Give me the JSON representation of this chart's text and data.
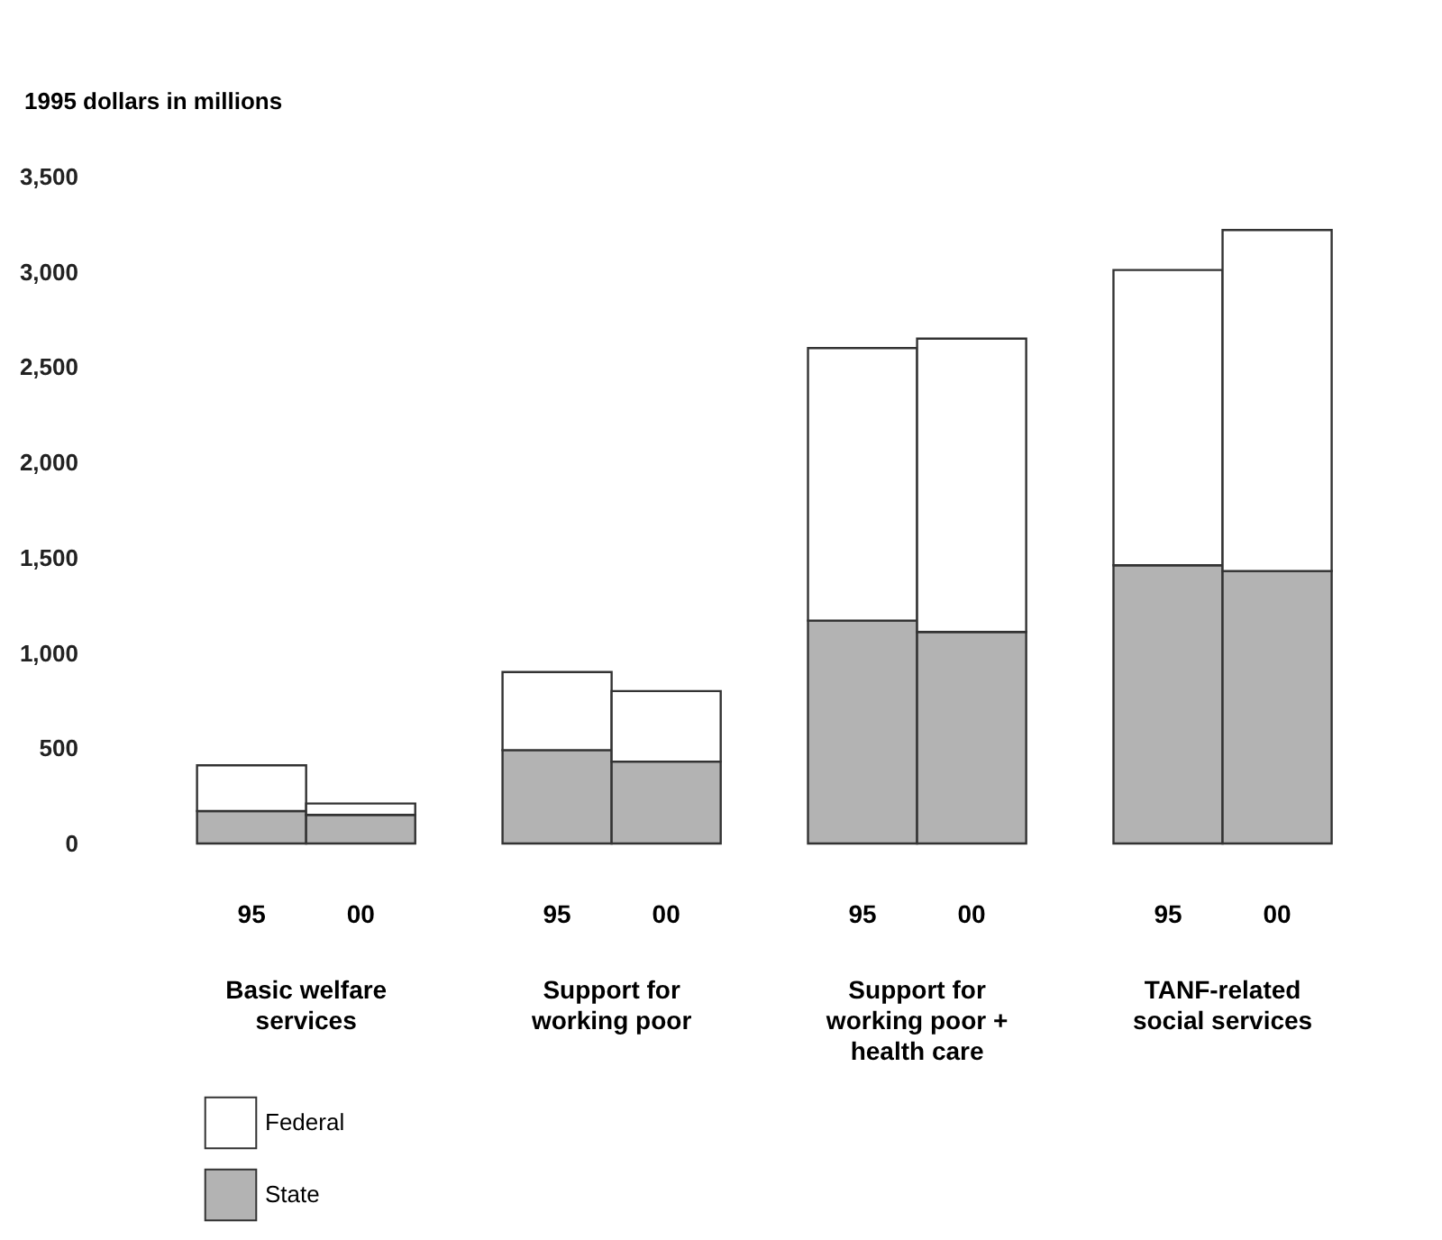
{
  "chart_data": {
    "type": "bar",
    "stacked": true,
    "ylabel": "1995 dollars in millions",
    "categories": [
      "95",
      "00",
      "95",
      "00",
      "95",
      "00",
      "95",
      "00"
    ],
    "series": [
      {
        "name": "State",
        "color": "#b3b3b3",
        "values": [
          170,
          150,
          490,
          430,
          1170,
          1110,
          1460,
          1430
        ]
      },
      {
        "name": "Federal",
        "color": "#ffffff",
        "values": [
          240,
          60,
          410,
          370,
          1430,
          1540,
          1550,
          1790
        ]
      }
    ],
    "annotations": [
      "Basic welfare\nservices",
      "Support for\nworking poor",
      "Support for\nworking poor +\nhealth care",
      "TANF-related\nsocial services"
    ],
    "ylim": [
      0,
      3500
    ],
    "yticks": [
      0,
      {
        "value": 500,
        "label": "500"
      },
      {
        "value": 1000,
        "label": "1,000"
      },
      {
        "value": 1500,
        "label": "1,500"
      },
      {
        "value": 2000,
        "label": "2,000"
      },
      {
        "value": 2500,
        "label": "2,500"
      },
      {
        "value": 3000,
        "label": "3,000"
      },
      {
        "value": 3500,
        "label": "3,500"
      }
    ],
    "grid": false,
    "legend": "bottom left"
  }
}
